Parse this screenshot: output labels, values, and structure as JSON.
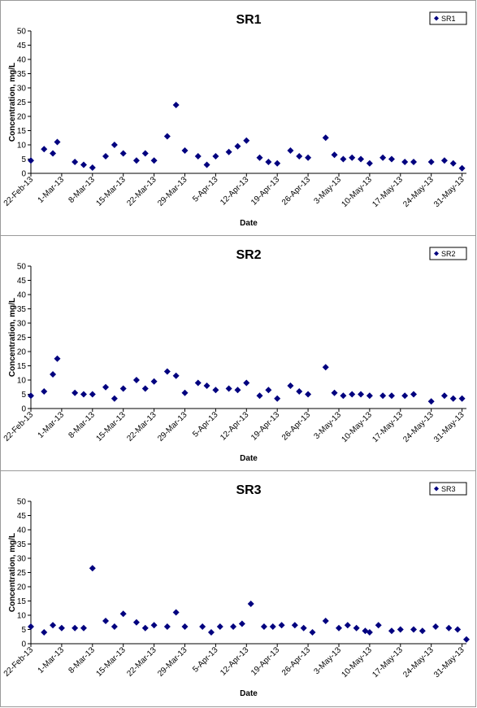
{
  "chart_data": [
    {
      "type": "scatter",
      "title": "SR1",
      "xlabel": "Date",
      "ylabel": "Concentration, mg/L",
      "ylim": [
        0,
        50
      ],
      "yticks": [
        0,
        5,
        10,
        15,
        20,
        25,
        30,
        35,
        40,
        45,
        50
      ],
      "xlim": [
        "2013-02-22",
        "2013-06-01"
      ],
      "xticks": [
        "22-Feb-13",
        "1-Mar-13",
        "8-Mar-13",
        "15-Mar-13",
        "22-Mar-13",
        "29-Mar-13",
        "5-Apr-13",
        "12-Apr-13",
        "19-Apr-13",
        "26-Apr-13",
        "3-May-13",
        "10-May-13",
        "17-May-13",
        "24-May-13",
        "31-May-13"
      ],
      "grid": false,
      "legend": "top-right",
      "series": [
        {
          "name": "SR1",
          "color": "#00007f",
          "points": [
            [
              "2013-02-22",
              4.5
            ],
            [
              "2013-02-25",
              8.5
            ],
            [
              "2013-02-27",
              7.0
            ],
            [
              "2013-02-28",
              11.0
            ],
            [
              "2013-03-04",
              4.0
            ],
            [
              "2013-03-06",
              3.0
            ],
            [
              "2013-03-08",
              2.0
            ],
            [
              "2013-03-11",
              6.0
            ],
            [
              "2013-03-13",
              10.0
            ],
            [
              "2013-03-15",
              7.0
            ],
            [
              "2013-03-18",
              4.5
            ],
            [
              "2013-03-20",
              7.0
            ],
            [
              "2013-03-22",
              4.5
            ],
            [
              "2013-03-25",
              13.0
            ],
            [
              "2013-03-27",
              24.0
            ],
            [
              "2013-03-29",
              8.0
            ],
            [
              "2013-04-01",
              6.0
            ],
            [
              "2013-04-03",
              3.0
            ],
            [
              "2013-04-05",
              6.0
            ],
            [
              "2013-04-08",
              7.5
            ],
            [
              "2013-04-10",
              9.5
            ],
            [
              "2013-04-12",
              11.5
            ],
            [
              "2013-04-15",
              5.5
            ],
            [
              "2013-04-17",
              4.0
            ],
            [
              "2013-04-19",
              3.5
            ],
            [
              "2013-04-22",
              8.0
            ],
            [
              "2013-04-24",
              6.0
            ],
            [
              "2013-04-26",
              5.5
            ],
            [
              "2013-04-30",
              12.5
            ],
            [
              "2013-05-02",
              6.5
            ],
            [
              "2013-05-04",
              5.0
            ],
            [
              "2013-05-06",
              5.5
            ],
            [
              "2013-05-08",
              5.0
            ],
            [
              "2013-05-10",
              3.5
            ],
            [
              "2013-05-13",
              5.5
            ],
            [
              "2013-05-15",
              5.0
            ],
            [
              "2013-05-18",
              4.0
            ],
            [
              "2013-05-20",
              4.0
            ],
            [
              "2013-05-24",
              4.0
            ],
            [
              "2013-05-27",
              4.5
            ],
            [
              "2013-05-29",
              3.5
            ],
            [
              "2013-05-31",
              1.8
            ]
          ]
        }
      ]
    },
    {
      "type": "scatter",
      "title": "SR2",
      "xlabel": "Date",
      "ylabel": "Concentration, mg/L",
      "ylim": [
        0,
        50
      ],
      "yticks": [
        0,
        5,
        10,
        15,
        20,
        25,
        30,
        35,
        40,
        45,
        50
      ],
      "xlim": [
        "2013-02-22",
        "2013-06-01"
      ],
      "xticks": [
        "22-Feb-13",
        "1-Mar-13",
        "8-Mar-13",
        "15-Mar-13",
        "22-Mar-13",
        "29-Mar-13",
        "5-Apr-13",
        "12-Apr-13",
        "19-Apr-13",
        "26-Apr-13",
        "3-May-13",
        "10-May-13",
        "17-May-13",
        "24-May-13",
        "31-May-13"
      ],
      "grid": false,
      "legend": "top-right",
      "series": [
        {
          "name": "SR2",
          "color": "#00007f",
          "points": [
            [
              "2013-02-22",
              4.5
            ],
            [
              "2013-02-25",
              6.0
            ],
            [
              "2013-02-27",
              12.0
            ],
            [
              "2013-02-28",
              17.5
            ],
            [
              "2013-03-04",
              5.5
            ],
            [
              "2013-03-06",
              5.0
            ],
            [
              "2013-03-08",
              5.0
            ],
            [
              "2013-03-11",
              7.5
            ],
            [
              "2013-03-13",
              3.5
            ],
            [
              "2013-03-15",
              7.0
            ],
            [
              "2013-03-18",
              10.0
            ],
            [
              "2013-03-20",
              7.0
            ],
            [
              "2013-03-22",
              9.5
            ],
            [
              "2013-03-25",
              13.0
            ],
            [
              "2013-03-27",
              11.5
            ],
            [
              "2013-03-29",
              5.5
            ],
            [
              "2013-04-01",
              9.0
            ],
            [
              "2013-04-03",
              8.0
            ],
            [
              "2013-04-05",
              6.5
            ],
            [
              "2013-04-08",
              7.0
            ],
            [
              "2013-04-10",
              6.5
            ],
            [
              "2013-04-12",
              9.0
            ],
            [
              "2013-04-15",
              4.5
            ],
            [
              "2013-04-17",
              6.5
            ],
            [
              "2013-04-19",
              3.5
            ],
            [
              "2013-04-22",
              8.0
            ],
            [
              "2013-04-24",
              6.0
            ],
            [
              "2013-04-26",
              5.0
            ],
            [
              "2013-04-30",
              14.5
            ],
            [
              "2013-05-02",
              5.5
            ],
            [
              "2013-05-04",
              4.5
            ],
            [
              "2013-05-06",
              5.0
            ],
            [
              "2013-05-08",
              5.0
            ],
            [
              "2013-05-10",
              4.5
            ],
            [
              "2013-05-13",
              4.5
            ],
            [
              "2013-05-15",
              4.5
            ],
            [
              "2013-05-18",
              4.5
            ],
            [
              "2013-05-20",
              5.0
            ],
            [
              "2013-05-24",
              2.5
            ],
            [
              "2013-05-27",
              4.5
            ],
            [
              "2013-05-29",
              3.5
            ],
            [
              "2013-05-31",
              3.5
            ]
          ]
        }
      ]
    },
    {
      "type": "scatter",
      "title": "SR3",
      "xlabel": "Date",
      "ylabel": "Concentration, mg/L",
      "ylim": [
        0,
        50
      ],
      "yticks": [
        0,
        5,
        10,
        15,
        20,
        25,
        30,
        35,
        40,
        45,
        50
      ],
      "xlim": [
        "2013-02-22",
        "2013-06-01"
      ],
      "xticks": [
        "22-Feb-13",
        "1-Mar-13",
        "8-Mar-13",
        "15-Mar-13",
        "22-Mar-13",
        "29-Mar-13",
        "5-Apr-13",
        "12-Apr-13",
        "19-Apr-13",
        "26-Apr-13",
        "3-May-13",
        "10-May-13",
        "17-May-13",
        "24-May-13",
        "31-May-13"
      ],
      "grid": false,
      "legend": "top-right",
      "series": [
        {
          "name": "SR3",
          "color": "#00007f",
          "points": [
            [
              "2013-02-22",
              6.0
            ],
            [
              "2013-02-25",
              4.0
            ],
            [
              "2013-02-27",
              6.5
            ],
            [
              "2013-03-01",
              5.5
            ],
            [
              "2013-03-04",
              5.5
            ],
            [
              "2013-03-06",
              5.5
            ],
            [
              "2013-03-08",
              26.5
            ],
            [
              "2013-03-11",
              8.0
            ],
            [
              "2013-03-13",
              6.0
            ],
            [
              "2013-03-15",
              10.5
            ],
            [
              "2013-03-18",
              7.5
            ],
            [
              "2013-03-20",
              5.5
            ],
            [
              "2013-03-22",
              6.5
            ],
            [
              "2013-03-25",
              6.0
            ],
            [
              "2013-03-27",
              11.0
            ],
            [
              "2013-03-29",
              6.0
            ],
            [
              "2013-04-02",
              6.0
            ],
            [
              "2013-04-04",
              4.0
            ],
            [
              "2013-04-06",
              6.0
            ],
            [
              "2013-04-09",
              6.0
            ],
            [
              "2013-04-11",
              7.0
            ],
            [
              "2013-04-13",
              14.0
            ],
            [
              "2013-04-16",
              6.0
            ],
            [
              "2013-04-18",
              6.0
            ],
            [
              "2013-04-20",
              6.5
            ],
            [
              "2013-04-23",
              6.5
            ],
            [
              "2013-04-25",
              5.5
            ],
            [
              "2013-04-27",
              4.0
            ],
            [
              "2013-04-30",
              8.0
            ],
            [
              "2013-05-03",
              5.5
            ],
            [
              "2013-05-05",
              6.5
            ],
            [
              "2013-05-07",
              5.5
            ],
            [
              "2013-05-09",
              4.5
            ],
            [
              "2013-05-10",
              4.0
            ],
            [
              "2013-05-12",
              6.5
            ],
            [
              "2013-05-15",
              4.5
            ],
            [
              "2013-05-17",
              5.0
            ],
            [
              "2013-05-20",
              5.0
            ],
            [
              "2013-05-22",
              4.5
            ],
            [
              "2013-05-25",
              6.0
            ],
            [
              "2013-05-28",
              5.5
            ],
            [
              "2013-05-30",
              5.0
            ],
            [
              "2013-06-01",
              1.5
            ]
          ]
        }
      ]
    }
  ]
}
